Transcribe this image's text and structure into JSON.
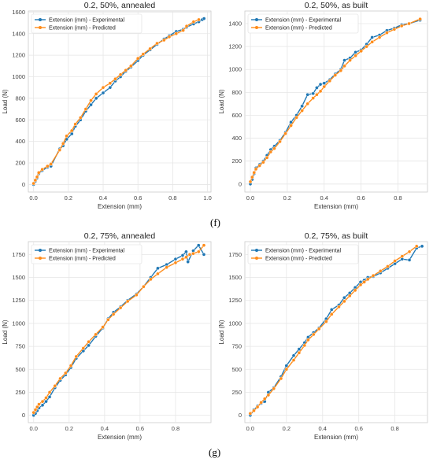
{
  "panel_labels": {
    "f": "(f)",
    "g": "(g)"
  },
  "colors": {
    "experimental": "#1f77b4",
    "predicted": "#ff8c1a",
    "grid": "#e6e6e6",
    "axes_text": "#444444"
  },
  "chart_data": [
    {
      "type": "line",
      "title": "0.2, 50%, annealed",
      "xlabel": "Extension (mm)",
      "ylabel": "Load (N)",
      "xlim": [
        -0.03,
        1.02
      ],
      "ylim": [
        -70,
        1610
      ],
      "xticks": [
        0.0,
        0.2,
        0.4,
        0.6,
        0.8,
        1.0
      ],
      "xtick_labels": [
        "0.0",
        "0.2",
        "0.4",
        "0.6",
        "0.8",
        "1.0"
      ],
      "yticks": [
        0,
        200,
        400,
        600,
        800,
        1000,
        1200,
        1400,
        1600
      ],
      "ytick_labels": [
        "0",
        "200",
        "400",
        "600",
        "800",
        "1000",
        "1200",
        "1400",
        "1600"
      ],
      "grid": true,
      "legend": "top-left",
      "series": [
        {
          "name": "Extension (mm) - Experimental",
          "x": [
            0.0,
            0.01,
            0.02,
            0.03,
            0.05,
            0.08,
            0.1,
            0.15,
            0.17,
            0.19,
            0.22,
            0.24,
            0.27,
            0.3,
            0.33,
            0.36,
            0.4,
            0.44,
            0.47,
            0.5,
            0.53,
            0.56,
            0.6,
            0.63,
            0.67,
            0.71,
            0.75,
            0.78,
            0.82,
            0.86,
            0.88,
            0.92,
            0.95,
            0.97,
            0.98
          ],
          "y": [
            0,
            30,
            60,
            100,
            130,
            160,
            170,
            330,
            360,
            420,
            470,
            540,
            600,
            680,
            740,
            800,
            850,
            900,
            960,
            1000,
            1050,
            1090,
            1150,
            1200,
            1250,
            1300,
            1350,
            1380,
            1420,
            1440,
            1460,
            1490,
            1510,
            1530,
            1540
          ]
        },
        {
          "name": "Extension (mm) - Predicted",
          "x": [
            0.0,
            0.01,
            0.02,
            0.03,
            0.05,
            0.08,
            0.1,
            0.15,
            0.17,
            0.19,
            0.22,
            0.24,
            0.27,
            0.3,
            0.33,
            0.36,
            0.4,
            0.44,
            0.47,
            0.5,
            0.53,
            0.56,
            0.6,
            0.63,
            0.67,
            0.71,
            0.75,
            0.78,
            0.82,
            0.86,
            0.88,
            0.92,
            0.95
          ],
          "y": [
            10,
            40,
            70,
            110,
            140,
            170,
            190,
            320,
            380,
            450,
            500,
            560,
            620,
            700,
            780,
            840,
            900,
            940,
            980,
            1020,
            1060,
            1100,
            1170,
            1210,
            1260,
            1310,
            1340,
            1370,
            1400,
            1430,
            1470,
            1510,
            1530
          ]
        }
      ]
    },
    {
      "type": "line",
      "title": "0.2, 50%, as built",
      "xlabel": "Extension (mm)",
      "ylabel": "Load (N)",
      "xlim": [
        -0.03,
        0.96
      ],
      "ylim": [
        -70,
        1510
      ],
      "xticks": [
        0.0,
        0.2,
        0.4,
        0.6,
        0.8
      ],
      "xtick_labels": [
        "0.0",
        "0.2",
        "0.4",
        "0.6",
        "0.8"
      ],
      "yticks": [
        0,
        200,
        400,
        600,
        800,
        1000,
        1200,
        1400
      ],
      "ytick_labels": [
        "0",
        "200",
        "400",
        "600",
        "800",
        "1000",
        "1200",
        "1400"
      ],
      "grid": true,
      "legend": "top-left",
      "series": [
        {
          "name": "Extension (mm) - Experimental",
          "x": [
            0.0,
            0.01,
            0.02,
            0.03,
            0.05,
            0.07,
            0.09,
            0.11,
            0.13,
            0.16,
            0.19,
            0.22,
            0.25,
            0.28,
            0.31,
            0.34,
            0.36,
            0.38,
            0.4,
            0.43,
            0.46,
            0.49,
            0.51,
            0.54,
            0.57,
            0.6,
            0.63,
            0.66,
            0.7,
            0.74,
            0.78,
            0.82,
            0.86,
            0.92
          ],
          "y": [
            0,
            40,
            90,
            140,
            170,
            200,
            250,
            300,
            330,
            380,
            450,
            540,
            600,
            680,
            780,
            790,
            840,
            870,
            880,
            910,
            960,
            1000,
            1080,
            1100,
            1150,
            1170,
            1220,
            1280,
            1300,
            1340,
            1360,
            1390,
            1400,
            1430
          ]
        },
        {
          "name": "Extension (mm) - Predicted",
          "x": [
            0.0,
            0.01,
            0.02,
            0.03,
            0.05,
            0.07,
            0.09,
            0.11,
            0.13,
            0.16,
            0.19,
            0.22,
            0.25,
            0.28,
            0.31,
            0.34,
            0.36,
            0.38,
            0.4,
            0.43,
            0.46,
            0.49,
            0.51,
            0.54,
            0.57,
            0.6,
            0.63,
            0.66,
            0.7,
            0.74,
            0.78,
            0.82,
            0.86,
            0.92
          ],
          "y": [
            20,
            60,
            100,
            130,
            160,
            190,
            230,
            280,
            310,
            370,
            440,
            510,
            580,
            640,
            700,
            750,
            780,
            810,
            850,
            900,
            950,
            990,
            1030,
            1080,
            1120,
            1160,
            1200,
            1240,
            1280,
            1320,
            1350,
            1380,
            1400,
            1440
          ]
        }
      ]
    },
    {
      "type": "line",
      "title": "0.2, 75%, annealed",
      "xlabel": "Extension (mm)",
      "ylabel": "Load (N)",
      "xlim": [
        -0.03,
        1.0
      ],
      "ylim": [
        -80,
        1890
      ],
      "xticks": [
        0.0,
        0.2,
        0.4,
        0.6,
        0.8
      ],
      "xtick_labels": [
        "0.0",
        "0.2",
        "0.4",
        "0.6",
        "0.8"
      ],
      "yticks": [
        0,
        250,
        500,
        750,
        1000,
        1250,
        1500,
        1750
      ],
      "ytick_labels": [
        "0",
        "250",
        "500",
        "750",
        "1000",
        "1250",
        "1500",
        "1750"
      ],
      "grid": true,
      "legend": "top-left",
      "series": [
        {
          "name": "Extension (mm) - Experimental",
          "x": [
            0.0,
            0.01,
            0.02,
            0.03,
            0.05,
            0.07,
            0.09,
            0.12,
            0.15,
            0.18,
            0.21,
            0.24,
            0.28,
            0.31,
            0.35,
            0.39,
            0.42,
            0.45,
            0.49,
            0.53,
            0.58,
            0.62,
            0.66,
            0.7,
            0.75,
            0.8,
            0.84,
            0.86,
            0.87,
            0.9,
            0.93,
            0.96
          ],
          "y": [
            0,
            20,
            50,
            80,
            110,
            150,
            200,
            300,
            380,
            440,
            520,
            620,
            700,
            760,
            860,
            950,
            1050,
            1120,
            1180,
            1250,
            1320,
            1400,
            1500,
            1600,
            1640,
            1700,
            1740,
            1780,
            1670,
            1790,
            1850,
            1750
          ]
        },
        {
          "name": "Extension (mm) - Predicted",
          "x": [
            0.0,
            0.01,
            0.02,
            0.03,
            0.05,
            0.07,
            0.09,
            0.12,
            0.15,
            0.18,
            0.21,
            0.24,
            0.28,
            0.31,
            0.35,
            0.39,
            0.42,
            0.45,
            0.49,
            0.53,
            0.58,
            0.62,
            0.66,
            0.7,
            0.75,
            0.8,
            0.84,
            0.86,
            0.88,
            0.9,
            0.93,
            0.96
          ],
          "y": [
            30,
            60,
            90,
            120,
            150,
            190,
            250,
            320,
            400,
            460,
            540,
            640,
            730,
            800,
            880,
            960,
            1040,
            1100,
            1170,
            1240,
            1310,
            1400,
            1480,
            1540,
            1610,
            1660,
            1700,
            1720,
            1750,
            1760,
            1780,
            1850
          ]
        }
      ]
    },
    {
      "type": "line",
      "title": "0.2, 75%, as built",
      "xlabel": "Extension (mm)",
      "ylabel": "Load (N)",
      "xlim": [
        -0.03,
        0.98
      ],
      "ylim": [
        -80,
        1890
      ],
      "xticks": [
        0.0,
        0.2,
        0.4,
        0.6,
        0.8
      ],
      "xtick_labels": [
        "0.0",
        "0.2",
        "0.4",
        "0.6",
        "0.8"
      ],
      "yticks": [
        0,
        250,
        500,
        750,
        1000,
        1250,
        1500,
        1750
      ],
      "ytick_labels": [
        "0",
        "250",
        "500",
        "750",
        "1000",
        "1250",
        "1500",
        "1750"
      ],
      "grid": true,
      "legend": "top-left",
      "series": [
        {
          "name": "Extension (mm) - Experimental",
          "x": [
            0.0,
            0.02,
            0.04,
            0.06,
            0.08,
            0.1,
            0.13,
            0.17,
            0.2,
            0.24,
            0.27,
            0.3,
            0.32,
            0.35,
            0.38,
            0.42,
            0.45,
            0.49,
            0.52,
            0.55,
            0.58,
            0.61,
            0.63,
            0.65,
            0.68,
            0.72,
            0.76,
            0.8,
            0.84,
            0.88,
            0.92,
            0.95
          ],
          "y": [
            0,
            60,
            100,
            130,
            150,
            250,
            300,
            420,
            540,
            650,
            720,
            790,
            850,
            900,
            950,
            1050,
            1150,
            1200,
            1280,
            1330,
            1390,
            1450,
            1470,
            1500,
            1510,
            1550,
            1600,
            1650,
            1700,
            1690,
            1820,
            1840
          ]
        },
        {
          "name": "Extension (mm) - Predicted",
          "x": [
            0.0,
            0.02,
            0.04,
            0.06,
            0.08,
            0.1,
            0.13,
            0.17,
            0.2,
            0.24,
            0.27,
            0.3,
            0.32,
            0.35,
            0.38,
            0.42,
            0.45,
            0.49,
            0.52,
            0.55,
            0.58,
            0.61,
            0.63,
            0.65,
            0.68,
            0.72,
            0.76,
            0.8,
            0.84,
            0.88,
            0.92
          ],
          "y": [
            20,
            50,
            90,
            140,
            180,
            220,
            290,
            400,
            500,
            600,
            680,
            760,
            820,
            880,
            940,
            1020,
            1100,
            1180,
            1240,
            1300,
            1360,
            1420,
            1450,
            1480,
            1520,
            1570,
            1620,
            1680,
            1730,
            1780,
            1840
          ]
        }
      ]
    }
  ]
}
